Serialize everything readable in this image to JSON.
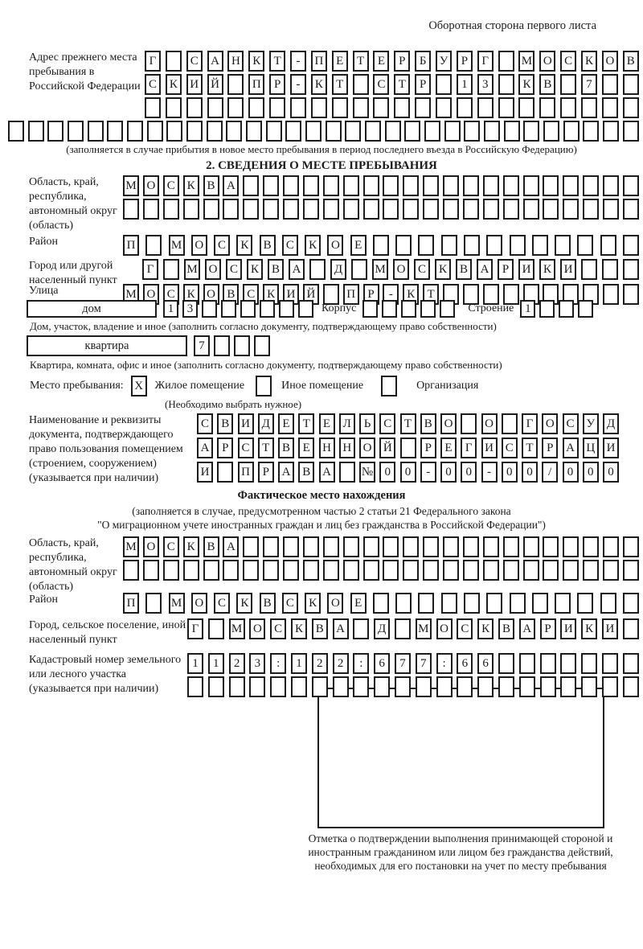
{
  "header": {
    "note": "Оборотная сторона первого листа"
  },
  "colors": {
    "ink": "#1c1c1c",
    "paper": "#ffffff"
  },
  "prev_address": {
    "label": "Адрес прежнего места пребывания в Российской Федерации",
    "row1": {
      "n": 24,
      "text": "Г САНКТ-ПЕТЕРБУРГ МОСКОВ"
    },
    "row2": {
      "n": 24,
      "text": "СКИЙ ПР-КТ СТР 13 КВ 7"
    },
    "row3": {
      "n": 24,
      "text": ""
    },
    "row4": {
      "n": 32,
      "text": ""
    },
    "caption": "(заполняется в случае прибытия в новое место пребывания в период последнего въезда в Российскую Федерацию)"
  },
  "section2": {
    "title": "2. СВЕДЕНИЯ О МЕСТЕ ПРЕБЫВАНИЯ",
    "region": {
      "label": "Область, край, республика, автономный округ (область)",
      "row1": {
        "n": 26,
        "text": "МОСКВА"
      },
      "row2": {
        "n": 26,
        "text": ""
      }
    },
    "raion": {
      "label": "Район",
      "row": {
        "n": 23,
        "text": "П МОСКВСКОЕ"
      }
    },
    "city": {
      "label": "Город или другой населенный пункт",
      "row": {
        "n": 24,
        "text": "Г МОСКВА Д МОСКВАРИКИ"
      }
    },
    "street": {
      "label": "Улица",
      "row": {
        "n": 26,
        "text": "МОСКОВСКИЙ ПР-КТ"
      }
    },
    "dom": {
      "box_label": "дом",
      "cells": {
        "n": 8,
        "text": "13"
      },
      "korpus_label": "Корпус",
      "korpus_cells": {
        "n": 5,
        "text": ""
      },
      "stroenie_label": "Строение",
      "stroenie_cells": {
        "n": 4,
        "text": "1"
      },
      "caption": "Дом, участок, владение и иное (заполнить согласно документу, подтверждающему право собственности)"
    },
    "kvartira": {
      "box_label": "квартира",
      "cells": {
        "n": 4,
        "text": "7"
      },
      "caption": "Квартира, комната, офис и иное (заполнить согласно документу, подтверждающему право собственности)"
    },
    "mesto": {
      "label": "Место пребывания:",
      "checked_mark": "X",
      "opt1": "Жилое помещение",
      "opt2": "Иное помещение",
      "opt3": "Организация",
      "hint": "(Необходимо выбрать нужное)"
    },
    "doc": {
      "label": "Наименование и реквизиты документа, подтверждающего право пользования помещением (строением, сооружением) (указывается при наличии)",
      "row1": {
        "n": 21,
        "text": "СВИДЕТЕЛЬСТВО О ГОСУД"
      },
      "row2": {
        "n": 21,
        "text": "АРСТВЕННОЙ РЕГИСТРАЦИ"
      },
      "row3": {
        "n": 21,
        "text": "И ПРАВА №00-00-00/000"
      }
    }
  },
  "fact": {
    "title": "Фактическое место нахождения",
    "caption1": "(заполняется в случае, предусмотренном частью 2 статьи 21 Федерального закона",
    "caption2": "\"О миграционном учете иностранных граждан и лиц без гражданства в Российской Федерации\")",
    "region": {
      "label": "Область, край, республика, автономный округ (область)",
      "row1": {
        "n": 26,
        "text": "МОСКВА"
      },
      "row2": {
        "n": 26,
        "text": ""
      }
    },
    "raion": {
      "label": "Район",
      "row": {
        "n": 23,
        "text": "П МОСКВСКОЕ"
      }
    },
    "city": {
      "label": "Город, сельское поселение, иной населенный пункт",
      "row": {
        "n": 22,
        "text": "Г МОСКВА Д МОСКВАРИКИ"
      }
    },
    "kadastr": {
      "label": "Кадастровый номер земельного или лесного участка (указывается при наличии)",
      "row1": {
        "n": 22,
        "text": "1123:122:677:66"
      },
      "row2": {
        "n": 22,
        "text": ""
      }
    },
    "stamp_caption": "Отметка о подтверждении выполнения принимающей стороной и иностранным гражданином или лицом без гражданства действий, необходимых для его постановки на учет по месту пребывания"
  }
}
